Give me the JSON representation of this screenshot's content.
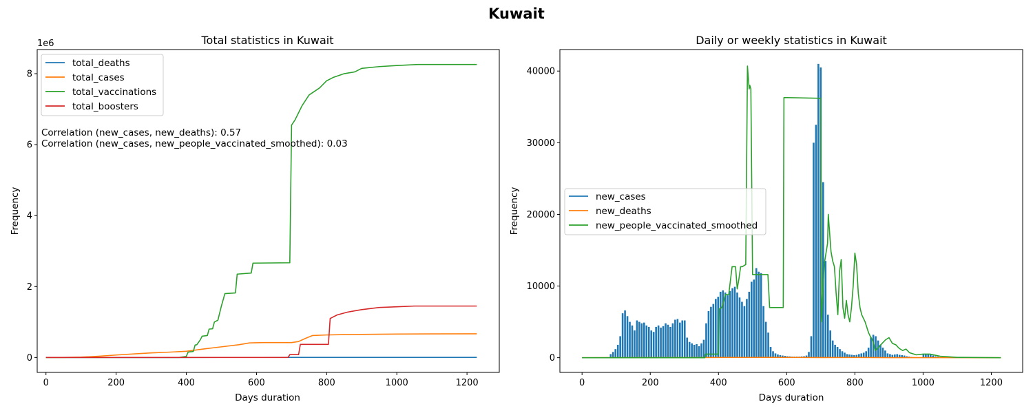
{
  "figure": {
    "suptitle": "Kuwait"
  },
  "chart_data": [
    {
      "type": "line",
      "title": "Total statistics in Kuwait",
      "xlabel": "Days duration",
      "ylabel": "Frequency",
      "y_scale_label": "1e6",
      "xlim": [
        -25,
        1292
      ],
      "ylim": [
        -420000,
        8680000
      ],
      "xticks": [
        0,
        200,
        400,
        600,
        800,
        1000,
        1200
      ],
      "yticks": [
        0,
        2000000,
        4000000,
        6000000,
        8000000
      ],
      "ytick_labels": [
        "0",
        "2",
        "4",
        "6",
        "8"
      ],
      "legend_position": "upper-left",
      "annotations": [
        "Correlation (new_cases, new_deaths): 0.57",
        "Correlation (new_cases, new_people_vaccinated_smoothed): 0.03"
      ],
      "series": [
        {
          "name": "total_deaths",
          "color": "#1f77b4",
          "x": [
            0,
            100,
            200,
            300,
            400,
            500,
            600,
            700,
            800,
            1000,
            1228
          ],
          "y": [
            0,
            200,
            700,
            900,
            1500,
            1900,
            2300,
            2500,
            2600,
            2650,
            2700
          ]
        },
        {
          "name": "total_cases",
          "color": "#ff7f0e",
          "x": [
            0,
            50,
            100,
            150,
            200,
            250,
            300,
            350,
            400,
            450,
            500,
            550,
            580,
            620,
            700,
            720,
            740,
            760,
            800,
            850,
            900,
            1000,
            1100,
            1228
          ],
          "y": [
            0,
            1000,
            10000,
            35000,
            70000,
            100000,
            130000,
            150000,
            175000,
            240000,
            300000,
            360000,
            410000,
            420000,
            420000,
            450000,
            540000,
            620000,
            635000,
            645000,
            650000,
            660000,
            665000,
            667000
          ]
        },
        {
          "name": "total_vaccinations",
          "color": "#2ca02c",
          "x": [
            0,
            380,
            400,
            405,
            420,
            425,
            430,
            440,
            445,
            460,
            465,
            475,
            480,
            490,
            500,
            510,
            540,
            545,
            585,
            590,
            695,
            700,
            710,
            720,
            730,
            750,
            780,
            800,
            820,
            850,
            880,
            900,
            950,
            1000,
            1060,
            1228
          ],
          "y": [
            0,
            0,
            30000,
            150000,
            170000,
            350000,
            360000,
            500000,
            600000,
            620000,
            800000,
            810000,
            1000000,
            1050000,
            1450000,
            1800000,
            1820000,
            2350000,
            2380000,
            2660000,
            2670000,
            6550000,
            6700000,
            6900000,
            7100000,
            7400000,
            7600000,
            7800000,
            7900000,
            8000000,
            8050000,
            8150000,
            8200000,
            8230000,
            8260000,
            8260000
          ]
        },
        {
          "name": "total_boosters",
          "color": "#d62728",
          "x": [
            0,
            690,
            695,
            720,
            725,
            805,
            810,
            830,
            860,
            900,
            950,
            1000,
            1050,
            1228
          ],
          "y": [
            0,
            0,
            80000,
            80000,
            370000,
            370000,
            1100000,
            1200000,
            1280000,
            1350000,
            1410000,
            1430000,
            1450000,
            1450000
          ]
        }
      ]
    },
    {
      "type": "bar+line",
      "title": "Daily or weekly statistics in Kuwait",
      "xlabel": "Days duration",
      "ylabel": "Frequency",
      "xlim": [
        -65,
        1292
      ],
      "ylim": [
        -2050,
        43000
      ],
      "xticks": [
        0,
        200,
        400,
        600,
        800,
        1000,
        1200
      ],
      "yticks": [
        0,
        10000,
        20000,
        30000,
        40000
      ],
      "legend_position": "center-left",
      "bars": {
        "name": "new_cases",
        "color": "#1f77b4",
        "step": 7,
        "start": 84,
        "values": [
          500,
          800,
          1200,
          1800,
          3000,
          6200,
          6600,
          5800,
          5000,
          4500,
          3800,
          5200,
          5000,
          4800,
          4900,
          4500,
          4300,
          3800,
          3600,
          4300,
          4500,
          4200,
          4400,
          4800,
          4600,
          4300,
          4800,
          5300,
          5400,
          4900,
          5200,
          5200,
          2800,
          2200,
          2000,
          1800,
          1900,
          1600,
          2000,
          2500,
          4800,
          6500,
          7100,
          7500,
          8200,
          8500,
          9200,
          9400,
          9100,
          8700,
          9300,
          9700,
          9900,
          9100,
          8400,
          7800,
          7200,
          8200,
          9200,
          10600,
          10900,
          12500,
          12000,
          11800,
          7200,
          5000,
          3500,
          1500,
          900,
          600,
          450,
          350,
          300,
          250,
          200,
          180,
          150,
          150,
          150,
          150,
          180,
          200,
          300,
          800,
          3000,
          30000,
          32500,
          41000,
          40500,
          24500,
          13500,
          6000,
          3800,
          2400,
          1800,
          1500,
          1200,
          900,
          700,
          500,
          450,
          400,
          350,
          400,
          500,
          600,
          700,
          900,
          1400,
          2800,
          3200,
          3000,
          2400,
          1800,
          1400,
          1000,
          600,
          500,
          400,
          450,
          500,
          400,
          350,
          300,
          200,
          150,
          100,
          80,
          60,
          50,
          40,
          500,
          550,
          450,
          400,
          300,
          200,
          150
        ]
      },
      "series": [
        {
          "name": "new_deaths",
          "color": "#ff7f0e",
          "x": [
            0,
            100,
            200,
            350,
            400,
            500,
            550,
            600,
            700,
            800,
            900,
            1000,
            1228
          ],
          "y": [
            0,
            10,
            20,
            20,
            30,
            40,
            50,
            40,
            20,
            30,
            10,
            5,
            0
          ]
        },
        {
          "name": "new_people_vaccinated_smoothed",
          "color": "#2ca02c",
          "x": [
            0,
            360,
            362,
            400,
            402,
            410,
            420,
            430,
            440,
            450,
            455,
            460,
            465,
            470,
            480,
            485,
            490,
            492,
            495,
            500,
            503,
            545,
            550,
            590,
            592,
            700,
            702,
            710,
            720,
            722,
            730,
            735,
            740,
            745,
            750,
            755,
            760,
            765,
            770,
            775,
            780,
            785,
            790,
            795,
            800,
            805,
            810,
            815,
            820,
            830,
            840,
            845,
            850,
            855,
            860,
            870,
            880,
            890,
            900,
            910,
            920,
            930,
            940,
            950,
            960,
            980,
            1000,
            1020,
            1050,
            1100,
            1228
          ],
          "y": [
            0,
            0,
            500,
            500,
            6800,
            7000,
            8800,
            8800,
            12700,
            12700,
            9600,
            11000,
            12700,
            12700,
            13000,
            40700,
            37500,
            38000,
            37500,
            11600,
            11600,
            11600,
            7000,
            7000,
            36300,
            36200,
            5000,
            13000,
            16000,
            20000,
            14800,
            13500,
            12700,
            9000,
            6000,
            12000,
            13700,
            7000,
            5500,
            8000,
            6000,
            5000,
            7000,
            10000,
            14600,
            13000,
            9000,
            7000,
            6000,
            5000,
            3500,
            3000,
            2600,
            2000,
            1000,
            1500,
            2000,
            2500,
            2800,
            2000,
            1800,
            1300,
            1000,
            1200,
            700,
            400,
            500,
            500,
            200,
            50,
            0
          ]
        }
      ]
    }
  ]
}
